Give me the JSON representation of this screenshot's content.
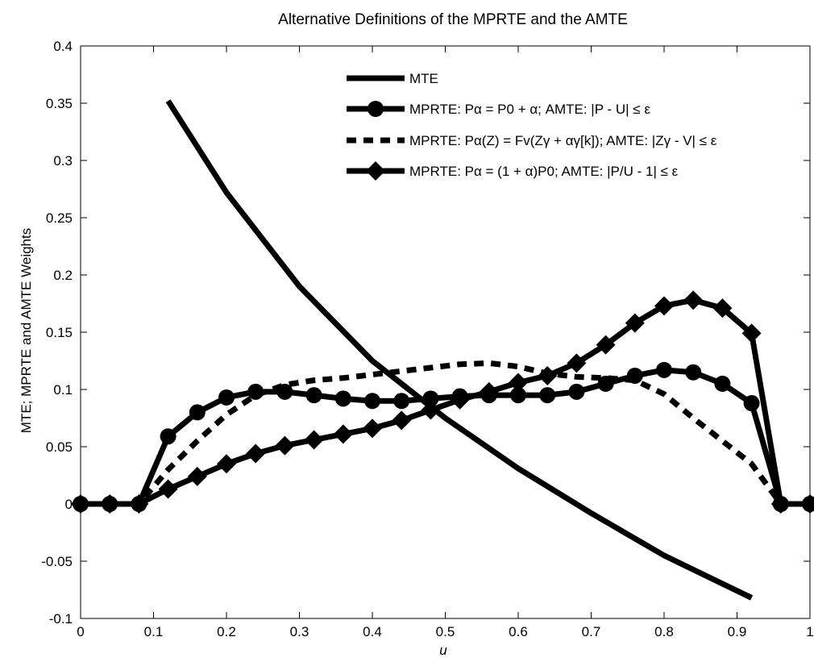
{
  "chart_data": {
    "type": "line",
    "title": "Alternative Definitions of the MPRTE and the AMTE",
    "xlabel": "u",
    "ylabel": "MTE; MPRTE and AMTE Weights",
    "xlim": [
      0,
      1
    ],
    "ylim": [
      -0.1,
      0.4
    ],
    "xticks": [
      0,
      0.1,
      0.2,
      0.3,
      0.4,
      0.5,
      0.6,
      0.7,
      0.8,
      0.9,
      1
    ],
    "xtick_labels": [
      "0",
      "0.1",
      "0.2",
      "0.3",
      "0.4",
      "0.5",
      "0.6",
      "0.7",
      "0.8",
      "0.9",
      "1"
    ],
    "yticks": [
      -0.1,
      -0.05,
      0,
      0.05,
      0.1,
      0.15,
      0.2,
      0.25,
      0.3,
      0.35,
      0.4
    ],
    "ytick_labels": [
      "-0.1",
      "-0.05",
      "0",
      "0.05",
      "0.1",
      "0.15",
      "0.2",
      "0.25",
      "0.3",
      "0.35",
      "0.4"
    ],
    "grid": false,
    "legend_position": "top-right",
    "series": [
      {
        "name": "MTE",
        "style": "solid",
        "marker": "none",
        "color": "#000000",
        "x": [
          0.12,
          0.2,
          0.3,
          0.4,
          0.5,
          0.6,
          0.7,
          0.8,
          0.92
        ],
        "y": [
          0.352,
          0.272,
          0.19,
          0.125,
          0.075,
          0.031,
          -0.008,
          -0.045,
          -0.082
        ]
      },
      {
        "name": "MPRTE: Pα = P0 + α; AMTE: |P - U| ≤ ε",
        "style": "solid",
        "marker": "circle",
        "color": "#000000",
        "x": [
          0,
          0.04,
          0.08,
          0.12,
          0.16,
          0.2,
          0.24,
          0.28,
          0.32,
          0.36,
          0.4,
          0.44,
          0.48,
          0.52,
          0.56,
          0.6,
          0.64,
          0.68,
          0.72,
          0.76,
          0.8,
          0.84,
          0.88,
          0.92,
          0.96,
          1
        ],
        "y": [
          0,
          0,
          0,
          0.059,
          0.08,
          0.093,
          0.098,
          0.098,
          0.095,
          0.092,
          0.09,
          0.09,
          0.092,
          0.094,
          0.095,
          0.095,
          0.095,
          0.098,
          0.105,
          0.112,
          0.117,
          0.115,
          0.105,
          0.088,
          0,
          0
        ]
      },
      {
        "name": "MPRTE: Pα(Z) = Fv(Zγ + αγ[k]); AMTE: |Zγ - V| ≤ ε",
        "style": "dashed",
        "marker": "none",
        "color": "#000000",
        "x": [
          0,
          0.04,
          0.08,
          0.12,
          0.16,
          0.2,
          0.24,
          0.28,
          0.32,
          0.36,
          0.4,
          0.44,
          0.48,
          0.52,
          0.56,
          0.6,
          0.64,
          0.68,
          0.72,
          0.76,
          0.8,
          0.84,
          0.88,
          0.92,
          0.96,
          1
        ],
        "y": [
          0,
          0,
          0,
          0.03,
          0.055,
          0.078,
          0.095,
          0.104,
          0.108,
          0.11,
          0.113,
          0.116,
          0.119,
          0.122,
          0.123,
          0.12,
          0.114,
          0.111,
          0.11,
          0.108,
          0.096,
          0.075,
          0.055,
          0.035,
          0,
          0
        ]
      },
      {
        "name": "MPRTE: Pα = (1 + α)P0; AMTE: |P/U - 1| ≤ ε",
        "style": "solid",
        "marker": "diamond",
        "color": "#000000",
        "x": [
          0,
          0.04,
          0.08,
          0.12,
          0.16,
          0.2,
          0.24,
          0.28,
          0.32,
          0.36,
          0.4,
          0.44,
          0.48,
          0.52,
          0.56,
          0.6,
          0.64,
          0.68,
          0.72,
          0.76,
          0.8,
          0.84,
          0.88,
          0.92,
          0.96,
          1
        ],
        "y": [
          0,
          0,
          0,
          0.013,
          0.024,
          0.035,
          0.044,
          0.051,
          0.056,
          0.061,
          0.066,
          0.073,
          0.082,
          0.091,
          0.098,
          0.106,
          0.112,
          0.123,
          0.139,
          0.158,
          0.173,
          0.178,
          0.171,
          0.149,
          0,
          0
        ]
      }
    ]
  }
}
